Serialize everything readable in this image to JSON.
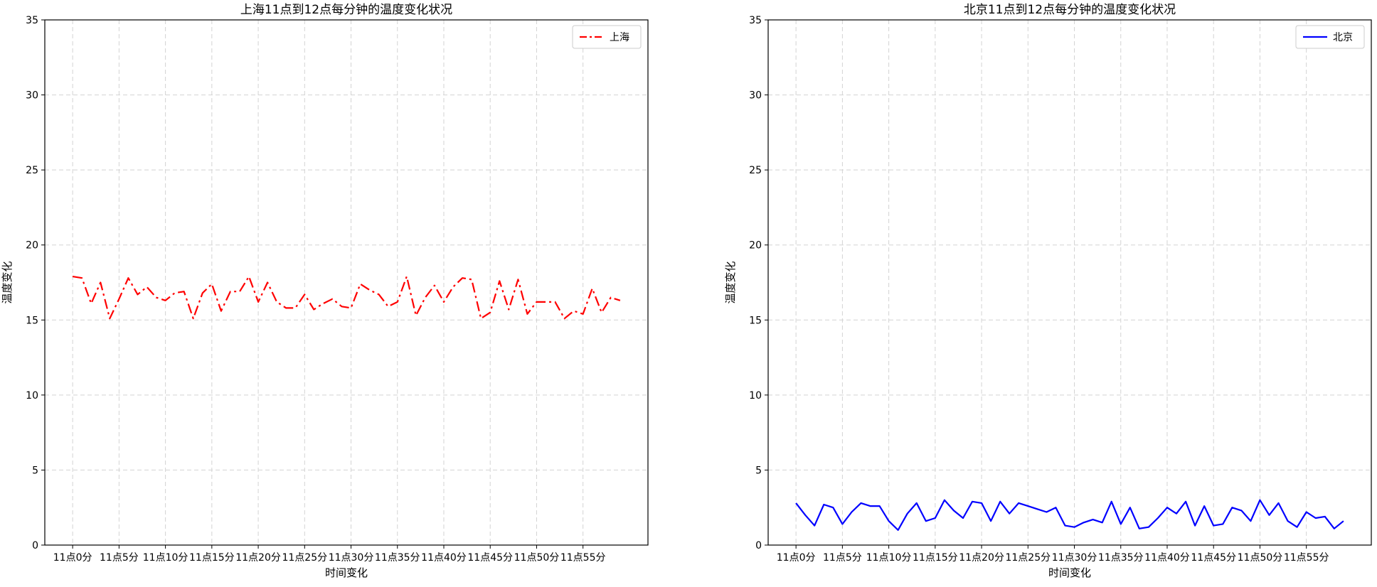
{
  "chart_data": [
    {
      "type": "line",
      "title": "上海11点到12点每分钟的温度变化状况",
      "xlabel": "时间变化",
      "ylabel": "温度变化",
      "ylim": [
        0,
        35
      ],
      "xlim": [
        -3,
        62
      ],
      "yticks": [
        0,
        5,
        10,
        15,
        20,
        25,
        30,
        35
      ],
      "xticks": [
        0,
        5,
        10,
        15,
        20,
        25,
        30,
        35,
        40,
        45,
        50,
        55
      ],
      "xtick_labels": [
        "11点0分",
        "11点5分",
        "11点10分",
        "11点15分",
        "11点20分",
        "11点25分",
        "11点30分",
        "11点35分",
        "11点40分",
        "11点45分",
        "11点50分",
        "11点55分"
      ],
      "grid": true,
      "legend_position": "top-right",
      "series": [
        {
          "name": "上海",
          "color": "#ff0000",
          "line_style": "dash-dot",
          "x": [
            0,
            1,
            2,
            3,
            4,
            5,
            6,
            7,
            8,
            9,
            10,
            11,
            12,
            13,
            14,
            15,
            16,
            17,
            18,
            19,
            20,
            21,
            22,
            23,
            24,
            25,
            26,
            27,
            28,
            29,
            30,
            31,
            32,
            33,
            34,
            35,
            36,
            37,
            38,
            39,
            40,
            41,
            42,
            43,
            44,
            45,
            46,
            47,
            48,
            49,
            50,
            51,
            52,
            53,
            54,
            55,
            56,
            57,
            58,
            59
          ],
          "values": [
            17.9,
            17.8,
            16.1,
            17.5,
            15.1,
            16.4,
            17.8,
            16.7,
            17.2,
            16.5,
            16.3,
            16.8,
            16.9,
            15.1,
            16.8,
            17.4,
            15.6,
            16.9,
            16.9,
            17.9,
            16.2,
            17.5,
            16.2,
            15.8,
            15.8,
            16.7,
            15.7,
            16.1,
            16.4,
            15.9,
            15.8,
            17.4,
            17.0,
            16.7,
            15.9,
            16.2,
            17.9,
            15.3,
            16.5,
            17.3,
            16.2,
            17.2,
            17.8,
            17.7,
            15.1,
            15.5,
            17.6,
            15.7,
            17.7,
            15.4,
            16.2,
            16.2,
            16.2,
            15.1,
            15.6,
            15.4,
            17.1,
            15.5,
            16.5,
            16.3
          ]
        }
      ]
    },
    {
      "type": "line",
      "title": "北京11点到12点每分钟的温度变化状况",
      "xlabel": "时间变化",
      "ylabel": "温度变化",
      "ylim": [
        0,
        35
      ],
      "xlim": [
        -3,
        62
      ],
      "yticks": [
        0,
        5,
        10,
        15,
        20,
        25,
        30,
        35
      ],
      "xticks": [
        0,
        5,
        10,
        15,
        20,
        25,
        30,
        35,
        40,
        45,
        50,
        55
      ],
      "xtick_labels": [
        "11点0分",
        "11点5分",
        "11点10分",
        "11点15分",
        "11点20分",
        "11点25分",
        "11点30分",
        "11点35分",
        "11点40分",
        "11点45分",
        "11点50分",
        "11点55分"
      ],
      "grid": true,
      "legend_position": "top-right",
      "series": [
        {
          "name": "北京",
          "color": "#0000ff",
          "line_style": "solid",
          "x": [
            0,
            1,
            2,
            3,
            4,
            5,
            6,
            7,
            8,
            9,
            10,
            11,
            12,
            13,
            14,
            15,
            16,
            17,
            18,
            19,
            20,
            21,
            22,
            23,
            24,
            25,
            26,
            27,
            28,
            29,
            30,
            31,
            32,
            33,
            34,
            35,
            36,
            37,
            38,
            39,
            40,
            41,
            42,
            43,
            44,
            45,
            46,
            47,
            48,
            49,
            50,
            51,
            52,
            53,
            54,
            55,
            56,
            57,
            58,
            59
          ],
          "values": [
            2.8,
            2.0,
            1.3,
            2.7,
            2.5,
            1.4,
            2.2,
            2.8,
            2.6,
            2.6,
            1.6,
            1.0,
            2.1,
            2.8,
            1.6,
            1.8,
            3.0,
            2.3,
            1.8,
            2.9,
            2.8,
            1.6,
            2.9,
            2.1,
            2.8,
            2.6,
            2.4,
            2.2,
            2.5,
            1.3,
            1.2,
            1.5,
            1.7,
            1.5,
            2.9,
            1.4,
            2.5,
            1.1,
            1.2,
            1.8,
            2.5,
            2.1,
            2.9,
            1.3,
            2.6,
            1.3,
            1.4,
            2.5,
            2.3,
            1.6,
            3.0,
            2.0,
            2.8,
            1.6,
            1.2,
            2.2,
            1.8,
            1.9,
            1.1,
            1.6
          ]
        }
      ]
    }
  ]
}
